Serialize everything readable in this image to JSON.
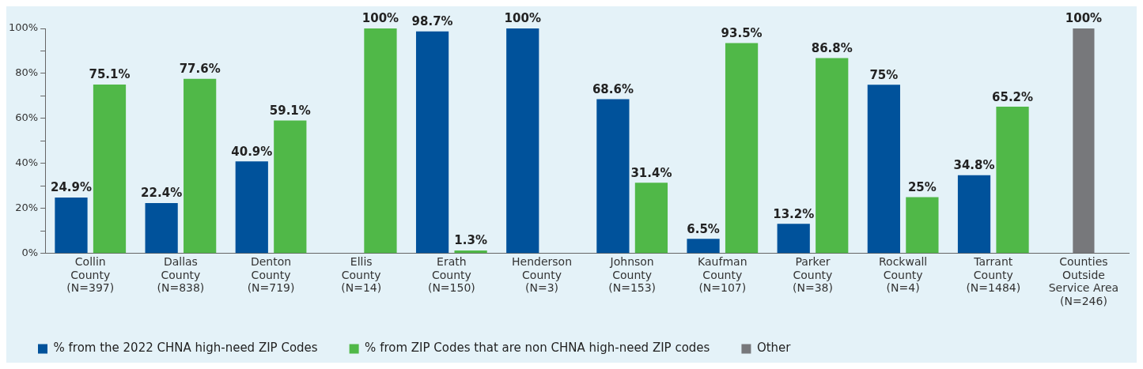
{
  "chart_data": {
    "type": "bar",
    "categories": [
      "Collin\nCounty\n(N=397)",
      "Dallas\nCounty\n(N=838)",
      "Denton\nCounty\n(N=719)",
      "Ellis\nCounty\n(N=14)",
      "Erath\nCounty\n(N=150)",
      "Henderson\nCounty\n(N=3)",
      "Johnson\nCounty\n(N=153)",
      "Kaufman\nCounty\n(N=107)",
      "Parker\nCounty\n(N=38)",
      "Rockwall\nCounty\n(N=4)",
      "Tarrant\nCounty\n(N=1484)",
      "Counties\nOutside\nService Area\n(N=246)"
    ],
    "series": [
      {
        "name": "% from the 2022 CHNA high-need ZIP Codes",
        "color": "#00529b",
        "values": [
          24.9,
          22.4,
          40.9,
          null,
          98.7,
          100,
          68.6,
          6.5,
          13.2,
          75,
          34.8,
          null
        ],
        "value_labels": [
          "24.9%",
          "22.4%",
          "40.9%",
          null,
          "98.7%",
          "100%",
          "68.6%",
          "6.5%",
          "13.2%",
          "75%",
          "34.8%",
          null
        ]
      },
      {
        "name": "% from ZIP Codes that are non CHNA high-need ZIP codes",
        "color": "#50b848",
        "values": [
          75.1,
          77.6,
          59.1,
          100,
          1.3,
          null,
          31.4,
          93.5,
          86.8,
          25,
          65.2,
          null
        ],
        "value_labels": [
          "75.1%",
          "77.6%",
          "59.1%",
          "100%",
          "1.3%",
          null,
          "31.4%",
          "93.5%",
          "86.8%",
          "25%",
          "65.2%",
          null
        ]
      },
      {
        "name": "Other",
        "color": "#77787b",
        "values": [
          null,
          null,
          null,
          null,
          null,
          null,
          null,
          null,
          null,
          null,
          null,
          100
        ],
        "value_labels": [
          null,
          null,
          null,
          null,
          null,
          null,
          null,
          null,
          null,
          null,
          null,
          "100%"
        ]
      }
    ],
    "ylim": [
      0,
      100
    ],
    "yticks": [
      {
        "value": 0,
        "label": "0%"
      },
      {
        "value": 10,
        "label": null
      },
      {
        "value": 20,
        "label": "20%"
      },
      {
        "value": 30,
        "label": null
      },
      {
        "value": 40,
        "label": "40%"
      },
      {
        "value": 50,
        "label": null
      },
      {
        "value": 60,
        "label": "60%"
      },
      {
        "value": 70,
        "label": null
      },
      {
        "value": 80,
        "label": "80%"
      },
      {
        "value": 90,
        "label": null
      },
      {
        "value": 100,
        "label": "100%"
      }
    ],
    "grid": false,
    "legend": "bottom left"
  }
}
